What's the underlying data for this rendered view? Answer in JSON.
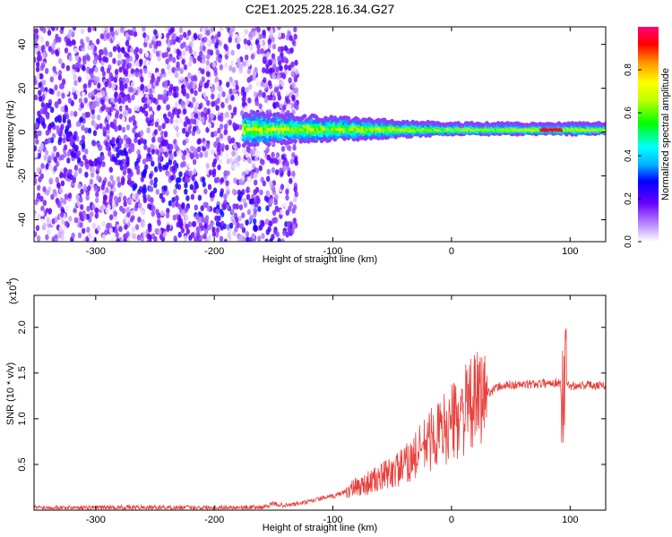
{
  "title": "C2E1.2025.228.16.34.G27",
  "chart_data": [
    {
      "type": "heatmap",
      "xlabel": "Height of straight line (km)",
      "ylabel": "Frequency (Hz)",
      "xlim": [
        -352,
        130
      ],
      "ylim": [
        -50,
        48
      ],
      "x_ticks": [
        -300,
        -200,
        -100,
        0,
        100
      ],
      "x_tick_labels": [
        "-300",
        "-200",
        "-100",
        "0",
        "100"
      ],
      "y_ticks": [
        -40,
        -20,
        0,
        20,
        40
      ],
      "y_tick_labels": [
        "-40",
        "-20",
        "0",
        "20",
        "40"
      ],
      "colorbar": {
        "label": "Normalized spectral amplitude",
        "range": [
          0,
          1
        ],
        "ticks": [
          0.0,
          0.2,
          0.4,
          0.6,
          0.8
        ],
        "tick_labels": [
          "0.0",
          "0.2",
          "0.4",
          "0.6",
          "0.8"
        ],
        "colormap": [
          "#ffffff",
          "#9b5cff",
          "#6a00ff",
          "#0000ff",
          "#00a0ff",
          "#00ffff",
          "#00ff00",
          "#c0ff00",
          "#ffff00",
          "#ff9900",
          "#ff0000",
          "#ff0080"
        ]
      },
      "description_data": {
        "noise_region_x": [
          -352,
          -130
        ],
        "signal_band_x": [
          -175,
          130
        ],
        "signal_center_freq": 1.5,
        "signal_halfwidth_hz": [
          6,
          2
        ],
        "peak_amplitude_x": [
          75,
          95
        ]
      }
    },
    {
      "type": "line",
      "xlabel": "Height of straight line (km)",
      "ylabel": "SNR (10 * v/v)",
      "y_multiplier": "(x10",
      "y_multiplier_exp": "4",
      "y_multiplier_close": ")",
      "xlim": [
        -352,
        130
      ],
      "ylim": [
        0,
        23500
      ],
      "x_ticks": [
        -300,
        -200,
        -100,
        0,
        100
      ],
      "x_tick_labels": [
        "-300",
        "-200",
        "-100",
        "0",
        "100"
      ],
      "y_ticks": [
        5000,
        10000,
        15000,
        20000
      ],
      "y_tick_labels": [
        "0.5",
        "1.0",
        "1.5",
        "2.0"
      ],
      "color": "#e8403c",
      "series": [
        {
          "x": [
            -352,
            -300,
            -250,
            -200,
            -160,
            -150,
            -140,
            -130,
            -120,
            -110,
            -100,
            -90,
            -80,
            -70,
            -60,
            -50,
            -40,
            -30,
            -20,
            -10,
            0,
            10,
            20,
            30,
            40,
            50,
            60,
            70,
            80,
            90,
            95,
            100,
            110,
            120,
            130
          ],
          "values": [
            300,
            300,
            300,
            300,
            300,
            700,
            500,
            700,
            900,
            1300,
            1500,
            2000,
            2500,
            3000,
            3500,
            4200,
            4800,
            6000,
            7500,
            8500,
            9500,
            10800,
            11800,
            12800,
            13500,
            13700,
            13700,
            13800,
            13900,
            14000,
            13600,
            13600,
            13700,
            13700,
            13700
          ]
        }
      ]
    }
  ]
}
